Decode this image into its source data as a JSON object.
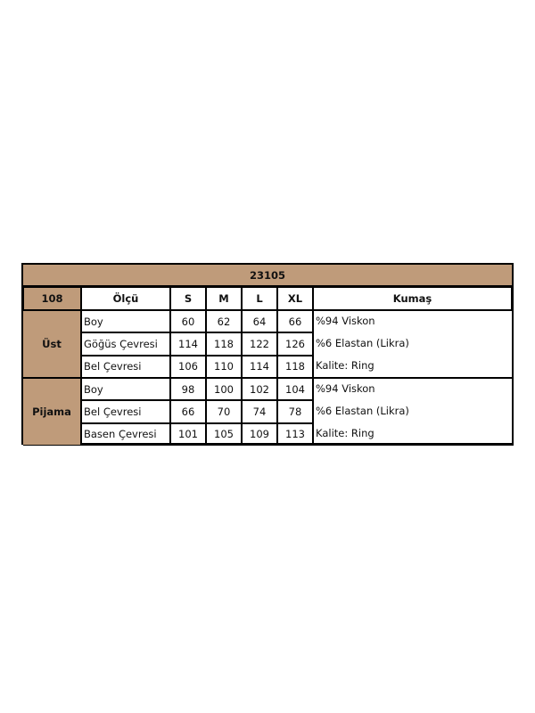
{
  "table": {
    "title": "23105",
    "model": "108",
    "headers": {
      "measure": "Ölçü",
      "sizes": [
        "S",
        "M",
        "L",
        "XL"
      ],
      "fabric": "Kumaş"
    },
    "groups": [
      {
        "name": "Üst",
        "rows": [
          {
            "label": "Boy",
            "values": [
              "60",
              "62",
              "64",
              "66"
            ]
          },
          {
            "label": "Göğüs Çevresi",
            "values": [
              "114",
              "118",
              "122",
              "126"
            ]
          },
          {
            "label": "Bel Çevresi",
            "values": [
              "106",
              "110",
              "114",
              "118"
            ]
          }
        ],
        "fabric": [
          "%94 Viskon",
          "%6 Elastan (Likra)",
          "Kalite: Ring"
        ]
      },
      {
        "name": "Pijama",
        "rows": [
          {
            "label": "Boy",
            "values": [
              "98",
              "100",
              "102",
              "104"
            ]
          },
          {
            "label": "Bel Çevresi",
            "values": [
              "66",
              "70",
              "74",
              "78"
            ]
          },
          {
            "label": "Basen Çevresi",
            "values": [
              "101",
              "105",
              "109",
              "113"
            ]
          }
        ],
        "fabric": [
          "%94 Viskon",
          "%6 Elastan (Likra)",
          "Kalite: Ring"
        ]
      }
    ],
    "header_color": "#bf9b7a"
  }
}
